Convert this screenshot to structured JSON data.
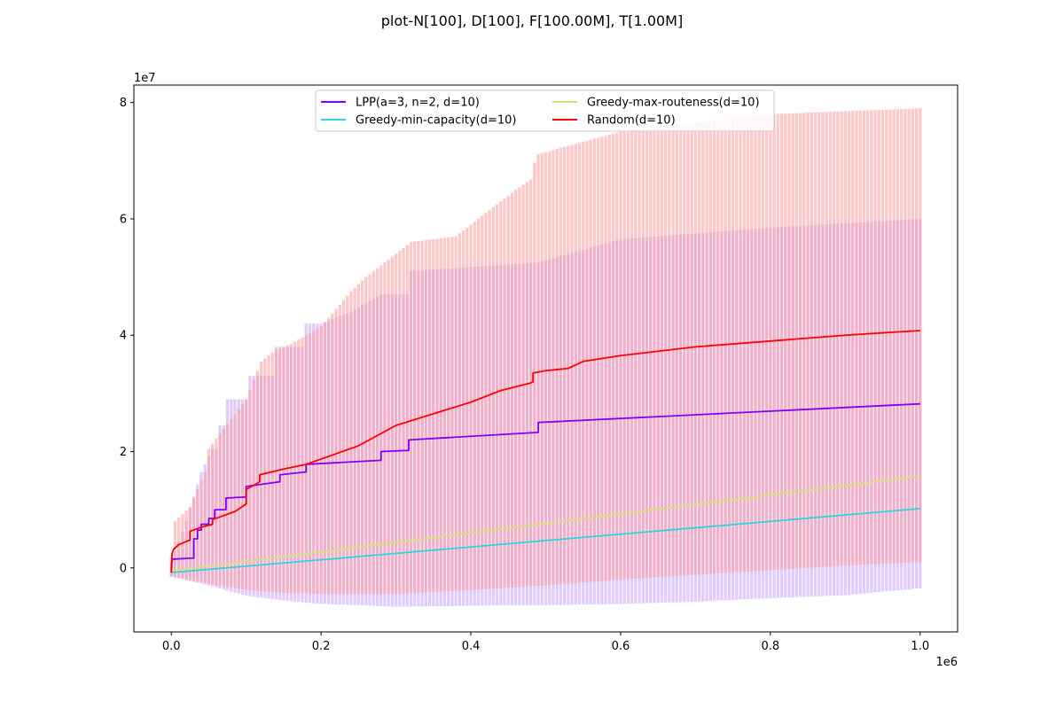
{
  "chart_data": {
    "type": "line",
    "title": "plot-N[100], D[100], F[100.00M], T[1.00M]",
    "xlabel": "",
    "ylabel": "",
    "x_offset_label": "1e6",
    "y_offset_label": "1e7",
    "xlim": [
      -50000,
      1050000
    ],
    "ylim": [
      -11000000,
      83000000
    ],
    "x_ticks": [
      0,
      200000,
      400000,
      600000,
      800000,
      1000000
    ],
    "x_tick_labels": [
      "0.0",
      "0.2",
      "0.4",
      "0.6",
      "0.8",
      "1.0"
    ],
    "y_ticks": [
      0,
      20000000,
      40000000,
      60000000,
      80000000
    ],
    "y_tick_labels": [
      "0",
      "2",
      "4",
      "6",
      "8"
    ],
    "grid": false,
    "legend_position": "top-center",
    "series": [
      {
        "name": "LPP(a=3, n=2, d=10)",
        "color": "#7f00ff",
        "band_color": "#c7a3ff",
        "x": [
          0,
          1000,
          2000,
          30000,
          30000,
          35000,
          35000,
          40000,
          40000,
          50000,
          50000,
          58000,
          58000,
          73000,
          73000,
          100000,
          100000,
          145000,
          145000,
          180000,
          180000,
          280000,
          280000,
          317000,
          317000,
          490000,
          490000,
          1000000
        ],
        "values": [
          0,
          1300000,
          1500000,
          1700000,
          5000000,
          5000000,
          6500000,
          6500000,
          7500000,
          7500000,
          8500000,
          8500000,
          10000000,
          10000000,
          12000000,
          12200000,
          14000000,
          14800000,
          16000000,
          16500000,
          17800000,
          18500000,
          20000000,
          20200000,
          22000000,
          23300000,
          25000000,
          28200000
        ],
        "band_upper_x": [
          0,
          20000,
          40000,
          55000,
          60000,
          65000,
          70000,
          75000,
          100000,
          105000,
          120000,
          135000,
          140000,
          175000,
          180000,
          200000,
          240000,
          280000,
          315000,
          320000,
          490000,
          600000,
          800000,
          1000000
        ],
        "band_upper": [
          1000000,
          8000000,
          16500000,
          20500000,
          20500000,
          24500000,
          24500000,
          29000000,
          29000000,
          33000000,
          33000000,
          33000000,
          38000000,
          38000000,
          42000000,
          42000000,
          44000000,
          47000000,
          47000000,
          51000000,
          52500000,
          56500000,
          58500000,
          60000000
        ],
        "band_lower_x": [
          0,
          50000,
          100000,
          150000,
          200000,
          250000,
          300000,
          350000,
          400000,
          500000,
          600000,
          700000,
          800000,
          900000,
          1000000
        ],
        "band_lower": [
          -1500000,
          -3000000,
          -4800000,
          -5600000,
          -6200000,
          -6400000,
          -6700000,
          -6600000,
          -6500000,
          -6400000,
          -6200000,
          -5800000,
          -5200000,
          -4700000,
          -3500000
        ]
      },
      {
        "name": "Greedy-min-capacity(d=10)",
        "color": "#2ad5e4",
        "x": [
          0,
          1000000
        ],
        "values": [
          -800000,
          10200000
        ]
      },
      {
        "name": "Greedy-max-routeness(d=10)",
        "color": "#d4e07a",
        "x": [
          0,
          1000000
        ],
        "values": [
          -500000,
          15800000
        ]
      },
      {
        "name": "Random(d=10)",
        "color": "#ff0000",
        "band_color": "#ff9a9a",
        "x": [
          0,
          1000,
          3000,
          10000,
          25000,
          25000,
          40000,
          55000,
          55000,
          85000,
          100000,
          100000,
          110000,
          118000,
          118000,
          150000,
          180000,
          250000,
          300000,
          350000,
          400000,
          440000,
          480000,
          483000,
          483000,
          500000,
          530000,
          550000,
          600000,
          700000,
          800000,
          900000,
          1000000
        ],
        "values": [
          -800000,
          2500000,
          3200000,
          4000000,
          4800000,
          6300000,
          7000000,
          7500000,
          8300000,
          9700000,
          11000000,
          13500000,
          14200000,
          14800000,
          16000000,
          17000000,
          17800000,
          21000000,
          24500000,
          26500000,
          28500000,
          30500000,
          31800000,
          32000000,
          33500000,
          33900000,
          34300000,
          35500000,
          36500000,
          38000000,
          39000000,
          40000000,
          40800000
        ],
        "band_upper_x": [
          0,
          5000,
          25000,
          45000,
          50000,
          100000,
          120000,
          140000,
          160000,
          200000,
          240000,
          260000,
          320000,
          380000,
          420000,
          460000,
          483000,
          486000,
          600000,
          800000,
          1000000
        ],
        "band_upper": [
          2000000,
          8000000,
          10500000,
          16500000,
          20500000,
          29000000,
          35500000,
          37500000,
          38500000,
          41500000,
          47500000,
          50000000,
          56000000,
          57000000,
          61000000,
          65000000,
          67000000,
          71000000,
          75000000,
          78000000,
          79000000
        ],
        "band_lower_x": [
          0,
          50000,
          100000,
          150000,
          200000,
          300000,
          400000,
          500000,
          600000,
          700000,
          800000,
          900000,
          1000000
        ],
        "band_lower": [
          -1500000,
          -2700000,
          -3800000,
          -4300000,
          -4500000,
          -4500000,
          -3800000,
          -3000000,
          -2000000,
          -1200000,
          -400000,
          400000,
          1000000
        ]
      }
    ]
  }
}
